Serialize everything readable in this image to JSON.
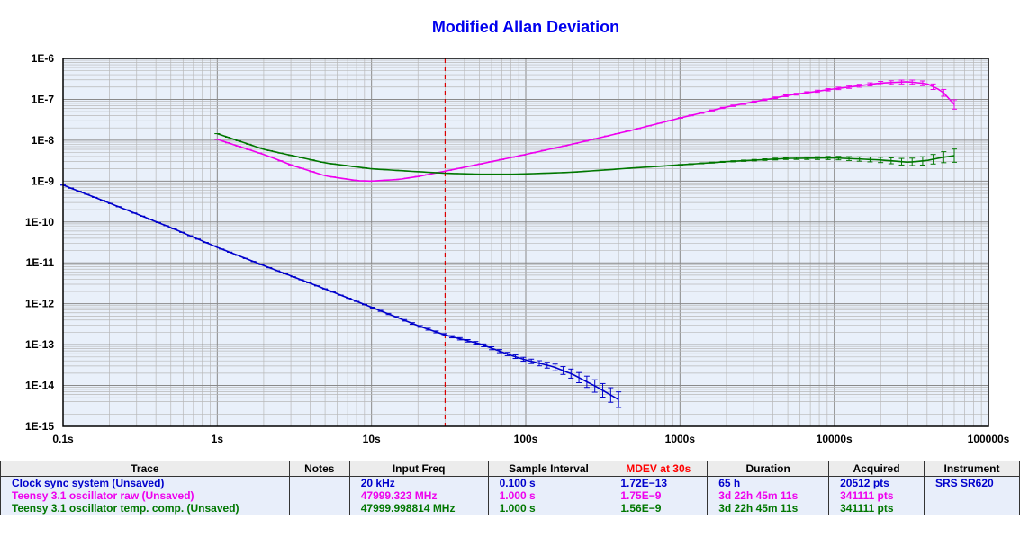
{
  "chart_data": {
    "type": "line",
    "title": "Modified Allan Deviation",
    "x_scale": "log",
    "y_scale": "log",
    "xlim": [
      0.1,
      100000
    ],
    "ylim": [
      1e-15,
      1e-06
    ],
    "x_tick_labels": [
      "0.1s",
      "1s",
      "10s",
      "100s",
      "1000s",
      "10000s",
      "100000s"
    ],
    "y_tick_labels": [
      "1E-6",
      "1E-7",
      "1E-8",
      "1E-9",
      "1E-10",
      "1E-11",
      "1E-12",
      "1E-13",
      "1E-14",
      "1E-15"
    ],
    "grid": true,
    "marker_tau": 30,
    "marker_color": "#dd0000",
    "series": [
      {
        "name": "Clock sync system (Unsaved)",
        "color": "#0000cc",
        "x": [
          0.1,
          0.2,
          0.5,
          1,
          2,
          5,
          10,
          20,
          30,
          50,
          80,
          100,
          150,
          200,
          300,
          400
        ],
        "y": [
          8e-10,
          2.9e-10,
          7.3e-11,
          2.4e-11,
          8.6e-12,
          2.3e-12,
          8.2e-13,
          2.9e-13,
          1.72e-13,
          1.05e-13,
          5.5e-14,
          4.2e-14,
          2.9e-14,
          1.9e-14,
          8.5e-15,
          4.5e-15
        ],
        "err": [
          0,
          0,
          0,
          0,
          0,
          0,
          0.03,
          0.05,
          0.06,
          0.08,
          0.1,
          0.12,
          0.2,
          0.3,
          0.45,
          0.55
        ]
      },
      {
        "name": "Teensy 3.1 oscillator raw (Unsaved)",
        "color": "#ee00ee",
        "x": [
          1,
          2,
          3,
          5,
          8,
          10,
          15,
          20,
          30,
          50,
          100,
          200,
          500,
          1000,
          2000,
          5000,
          10000,
          20000,
          30000,
          40000,
          50000,
          60000
        ],
        "y": [
          1.05e-08,
          4.5e-09,
          2.5e-09,
          1.35e-09,
          1.03e-09,
          1e-09,
          1.1e-09,
          1.3e-09,
          1.75e-09,
          2.6e-09,
          4.5e-09,
          8e-09,
          1.8e-08,
          3.5e-08,
          6.5e-08,
          1.25e-07,
          1.8e-07,
          2.5e-07,
          2.7e-07,
          2.4e-07,
          1.6e-07,
          7.5e-08
        ],
        "err": [
          0,
          0,
          0,
          0,
          0,
          0,
          0,
          0,
          0,
          0,
          0,
          0,
          0,
          0.02,
          0.04,
          0.05,
          0.07,
          0.1,
          0.12,
          0.15,
          0.2,
          0.3
        ]
      },
      {
        "name": "Teensy 3.1 oscillator temp. comp. (Unsaved)",
        "color": "#007700",
        "x": [
          1,
          2,
          5,
          10,
          20,
          30,
          50,
          80,
          100,
          200,
          500,
          1000,
          2000,
          5000,
          10000,
          20000,
          30000,
          40000,
          50000,
          60000
        ],
        "y": [
          1.45e-08,
          6e-09,
          2.8e-09,
          2e-09,
          1.7e-09,
          1.56e-09,
          1.47e-09,
          1.47e-09,
          1.5e-09,
          1.65e-09,
          2.1e-09,
          2.5e-09,
          3e-09,
          3.6e-09,
          3.7e-09,
          3.3e-09,
          2.9e-09,
          3.2e-09,
          3.8e-09,
          4.2e-09
        ],
        "err": [
          0,
          0,
          0,
          0,
          0,
          0,
          0,
          0,
          0,
          0,
          0,
          0.02,
          0.03,
          0.06,
          0.1,
          0.16,
          0.22,
          0.28,
          0.35,
          0.45
        ]
      }
    ]
  },
  "table": {
    "headers": [
      "Trace",
      "Notes",
      "Input Freq",
      "Sample Interval",
      "MDEV at 30s",
      "Duration",
      "Acquired",
      "Instrument"
    ],
    "header_highlight_color": "#ff0000",
    "rows": [
      {
        "trace": "Clock sync system (Unsaved)",
        "notes": "",
        "input_freq": "20 kHz",
        "sample_interval": "0.100 s",
        "mdev": "1.72E−13",
        "duration": "65 h",
        "acquired": "20512 pts",
        "instrument": "SRS SR620",
        "color": "#0000cc"
      },
      {
        "trace": "Teensy 3.1 oscillator raw (Unsaved)",
        "notes": "",
        "input_freq": "47999.323 MHz",
        "sample_interval": "1.000 s",
        "mdev": "1.75E−9",
        "duration": "3d 22h 45m 11s",
        "acquired": "341111 pts",
        "instrument": "",
        "color": "#ee00ee"
      },
      {
        "trace": "Teensy 3.1 oscillator temp. comp. (Unsaved)",
        "notes": "",
        "input_freq": "47999.998814 MHz",
        "sample_interval": "1.000 s",
        "mdev": "1.56E−9",
        "duration": "3d 22h 45m 11s",
        "acquired": "341111 pts",
        "instrument": "",
        "color": "#007700"
      }
    ]
  }
}
